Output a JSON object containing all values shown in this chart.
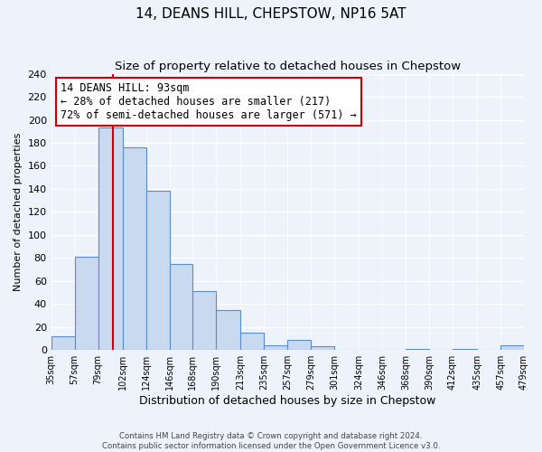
{
  "title": "14, DEANS HILL, CHEPSTOW, NP16 5AT",
  "subtitle": "Size of property relative to detached houses in Chepstow",
  "xlabel": "Distribution of detached houses by size in Chepstow",
  "ylabel": "Number of detached properties",
  "bar_edges": [
    35,
    57,
    79,
    102,
    124,
    146,
    168,
    190,
    213,
    235,
    257,
    279,
    301,
    324,
    346,
    368,
    390,
    412,
    435,
    457,
    479
  ],
  "bar_heights": [
    12,
    81,
    193,
    176,
    138,
    75,
    51,
    35,
    15,
    4,
    9,
    3,
    0,
    0,
    0,
    1,
    0,
    1,
    0,
    4
  ],
  "bar_color": "#c9d9f0",
  "bar_edge_color": "#5b8ec9",
  "vline_x": 93,
  "vline_color": "#cc0000",
  "annotation_line1": "14 DEANS HILL: 93sqm",
  "annotation_line2": "← 28% of detached houses are smaller (217)",
  "annotation_line3": "72% of semi-detached houses are larger (571) →",
  "ylim": [
    0,
    240
  ],
  "xlim": [
    35,
    479
  ],
  "tick_labels": [
    "35sqm",
    "57sqm",
    "79sqm",
    "102sqm",
    "124sqm",
    "146sqm",
    "168sqm",
    "190sqm",
    "213sqm",
    "235sqm",
    "257sqm",
    "279sqm",
    "301sqm",
    "324sqm",
    "346sqm",
    "368sqm",
    "390sqm",
    "412sqm",
    "435sqm",
    "457sqm",
    "479sqm"
  ],
  "footer_line1": "Contains HM Land Registry data © Crown copyright and database right 2024.",
  "footer_line2": "Contains public sector information licensed under the Open Government Licence v3.0.",
  "bg_color": "#eef2fa",
  "grid_color": "#ffffff",
  "title_fontsize": 11,
  "subtitle_fontsize": 9.5,
  "xlabel_fontsize": 9,
  "ylabel_fontsize": 8,
  "annotation_fontsize": 8.5,
  "tick_fontsize": 7
}
